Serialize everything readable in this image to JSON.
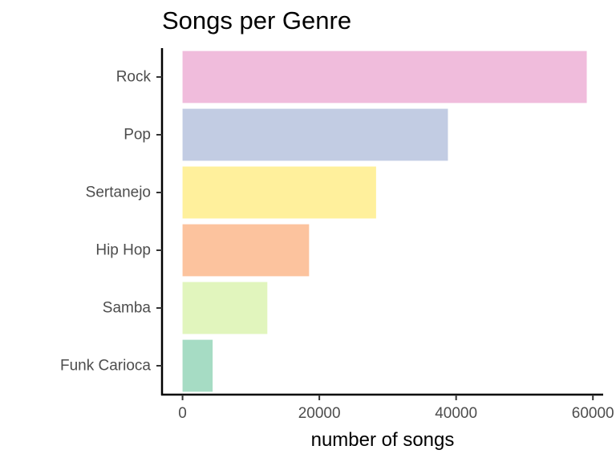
{
  "chart_data": {
    "type": "bar",
    "orientation": "horizontal",
    "title": "Songs per Genre",
    "xlabel": "number of songs",
    "ylabel": "",
    "categories": [
      "Rock",
      "Pop",
      "Sertanejo",
      "Hip Hop",
      "Samba",
      "Funk Carioca"
    ],
    "values": [
      59100,
      38800,
      28300,
      18500,
      12400,
      4400
    ],
    "colors": [
      "#f0bcdc",
      "#c2cce3",
      "#fff09c",
      "#fcc39e",
      "#e1f5bd",
      "#a6dcc4"
    ],
    "xlim": [
      -3000,
      61500
    ],
    "xticks": [
      0,
      20000,
      40000,
      60000
    ],
    "grid": false,
    "legend": "none"
  }
}
